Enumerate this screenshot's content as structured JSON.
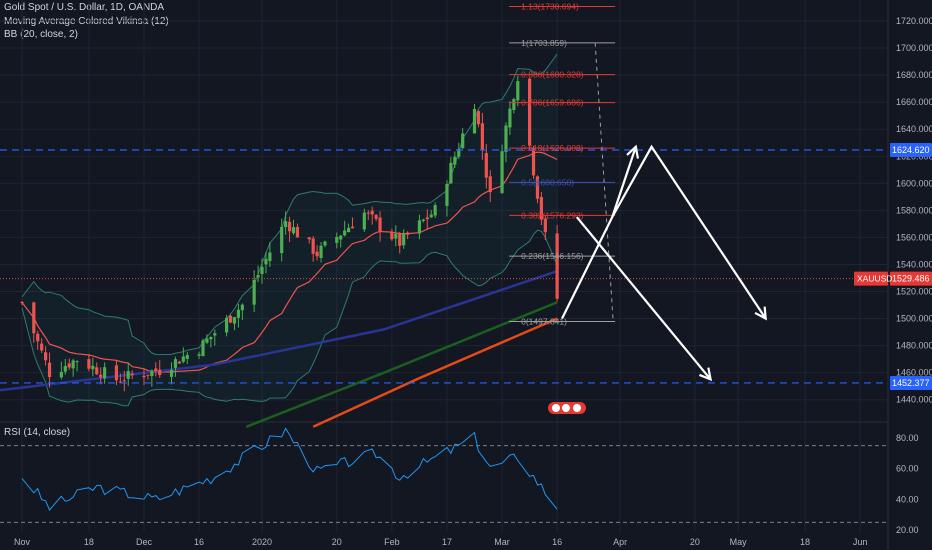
{
  "header": {
    "symbol_line": "Gold Spot / U.S. Dollar, 1D, OANDA",
    "indicator1": "Moving Average Colored Vikinsa (12)",
    "indicator2": "BB (20, close, 2)"
  },
  "rsi_label": "RSI (14, close)",
  "price_ticks": [
    "1720.000",
    "1700.000",
    "1680.000",
    "1660.000",
    "1640.000",
    "1620.000",
    "1600.000",
    "1580.000",
    "1560.000",
    "1540.000",
    "1520.000",
    "1500.000",
    "1480.000",
    "1460.000",
    "1440.000"
  ],
  "rsi_ticks": [
    "80.00",
    "60.00",
    "40.00",
    "20.00"
  ],
  "time_labels": [
    "Nov",
    "18",
    "Dec",
    "16",
    "2020",
    "20",
    "Feb",
    "17",
    "Mar",
    "16",
    "Apr",
    "20",
    "May",
    "18",
    "Jun"
  ],
  "badges": {
    "upper_level": "1624.620",
    "lower_level": "1452.377",
    "current_symbol": "XAUUSD",
    "current_price": "1529.486"
  },
  "fib_levels": [
    {
      "label": "1.13(1730.694)",
      "price": 1730.694,
      "color": "#e53935"
    },
    {
      "label": "1(1703.859)",
      "price": 1703.859,
      "color": "#9e9e9e"
    },
    {
      "label": "0.886(1680.328)",
      "price": 1680.328,
      "color": "#e53935"
    },
    {
      "label": "0.786(1659.686)",
      "price": 1659.686,
      "color": "#e53935"
    },
    {
      "label": "0.618(1626.008)",
      "price": 1626.008,
      "color": "#e53935"
    },
    {
      "label": "0.5(1600.650)",
      "price": 1600.65,
      "color": "#3f51b5"
    },
    {
      "label": "0.382(1576.293)",
      "price": 1576.293,
      "color": "#e53935"
    },
    {
      "label": "0.236(1546.156)",
      "price": 1546.156,
      "color": "#9e9e9e"
    },
    {
      "label": "0(1497.841)",
      "price": 1497.841,
      "color": "#9e9e9e"
    }
  ],
  "colors": {
    "background": "#131722",
    "up": "#26a69a",
    "up_bright": "#4caf50",
    "down": "#ef5350",
    "blue_dash": "#2962ff",
    "ma_red": "#e64a19",
    "ma_green": "#1b5e20",
    "ma_navy": "#283593",
    "bb": "#2e7d6b",
    "rsi": "#2196f3"
  },
  "chart_data": {
    "type": "candlestick",
    "title": "Gold Spot / U.S. Dollar, 1D, OANDA",
    "ylim": [
      1420,
      1740
    ],
    "horizontal_levels": [
      1624.62,
      1452.377
    ],
    "current_price": 1529.486,
    "price_path_anchors": [
      {
        "date": "2019-11-01",
        "close": 1512
      },
      {
        "date": "2019-11-08",
        "close": 1460
      },
      {
        "date": "2019-11-15",
        "close": 1470
      },
      {
        "date": "2019-11-25",
        "close": 1455
      },
      {
        "date": "2019-12-06",
        "close": 1462
      },
      {
        "date": "2019-12-16",
        "close": 1478
      },
      {
        "date": "2019-12-27",
        "close": 1510
      },
      {
        "date": "2020-01-07",
        "close": 1572
      },
      {
        "date": "2020-01-15",
        "close": 1548
      },
      {
        "date": "2020-01-27",
        "close": 1578
      },
      {
        "date": "2020-02-05",
        "close": 1556
      },
      {
        "date": "2020-02-14",
        "close": 1580
      },
      {
        "date": "2020-02-24",
        "close": 1660
      },
      {
        "date": "2020-02-28",
        "close": 1590
      },
      {
        "date": "2020-03-06",
        "close": 1680
      },
      {
        "date": "2020-03-12",
        "close": 1575
      },
      {
        "date": "2020-03-16",
        "close": 1515
      }
    ],
    "projected_path_a": [
      1500,
      1575,
      1627,
      1500
    ],
    "projected_path_b": [
      1500,
      1575,
      1455
    ],
    "rsi": {
      "label": "RSI (14, close)",
      "levels": [
        75,
        25
      ],
      "ylim": [
        18,
        90
      ],
      "anchors": [
        {
          "date": "2019-11-01",
          "value": 55
        },
        {
          "date": "2019-11-08",
          "value": 35
        },
        {
          "date": "2019-11-20",
          "value": 48
        },
        {
          "date": "2019-12-05",
          "value": 40
        },
        {
          "date": "2019-12-20",
          "value": 55
        },
        {
          "date": "2020-01-07",
          "value": 85
        },
        {
          "date": "2020-01-15",
          "value": 58
        },
        {
          "date": "2020-01-30",
          "value": 70
        },
        {
          "date": "2020-02-05",
          "value": 55
        },
        {
          "date": "2020-02-24",
          "value": 80
        },
        {
          "date": "2020-02-28",
          "value": 60
        },
        {
          "date": "2020-03-06",
          "value": 68
        },
        {
          "date": "2020-03-16",
          "value": 35
        }
      ]
    }
  }
}
